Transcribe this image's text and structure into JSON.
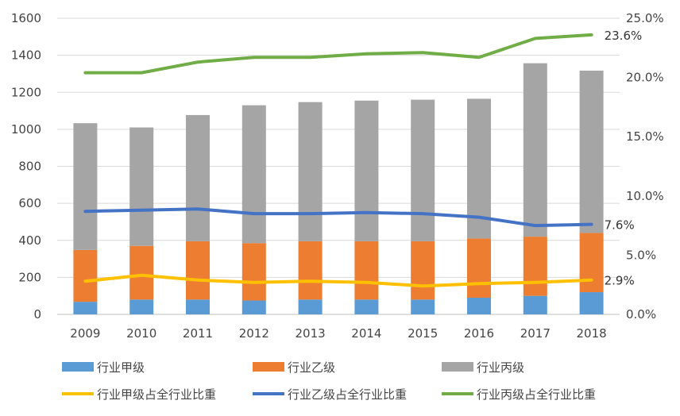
{
  "chart_data": {
    "type": "bar",
    "title": "",
    "categories": [
      "2009",
      "2010",
      "2011",
      "2012",
      "2013",
      "2014",
      "2015",
      "2016",
      "2017",
      "2018"
    ],
    "stacked": true,
    "series": [
      {
        "name": "行业甲级",
        "kind": "bar",
        "axis": "left",
        "color": "#5b9bd5",
        "values": [
          68,
          80,
          80,
          75,
          80,
          80,
          80,
          90,
          100,
          120
        ]
      },
      {
        "name": "行业乙级",
        "kind": "bar",
        "axis": "left",
        "color": "#ed7d31",
        "values": [
          280,
          290,
          315,
          310,
          315,
          315,
          315,
          320,
          320,
          320
        ]
      },
      {
        "name": "行业丙级",
        "kind": "bar",
        "axis": "left",
        "color": "#a5a5a5",
        "values": [
          685,
          640,
          682,
          745,
          752,
          760,
          765,
          755,
          937,
          877
        ]
      },
      {
        "name": "行业甲级占全行业比重",
        "kind": "line",
        "axis": "right",
        "color": "#ffc000",
        "values": [
          2.8,
          3.3,
          2.9,
          2.7,
          2.8,
          2.7,
          2.4,
          2.6,
          2.7,
          2.9
        ]
      },
      {
        "name": "行业乙级占全行业比重",
        "kind": "line",
        "axis": "right",
        "color": "#4472c4",
        "values": [
          8.7,
          8.8,
          8.9,
          8.5,
          8.5,
          8.6,
          8.5,
          8.2,
          7.5,
          7.6
        ]
      },
      {
        "name": "行业丙级占全行业比重",
        "kind": "line",
        "axis": "right",
        "color": "#70ad47",
        "values": [
          20.4,
          20.4,
          21.3,
          21.7,
          21.7,
          22.0,
          22.1,
          21.7,
          23.3,
          23.6
        ]
      }
    ],
    "ylim_left": [
      0,
      1600
    ],
    "yticks_left": [
      "0",
      "200",
      "400",
      "600",
      "800",
      "1000",
      "1200",
      "1400",
      "1600"
    ],
    "ylim_right": [
      0,
      25
    ],
    "yticks_right": [
      "0.0%",
      "5.0%",
      "10.0%",
      "15.0%",
      "20.0%",
      "25.0%"
    ],
    "end_labels": [
      {
        "series": "行业丙级占全行业比重",
        "text": "23.6%"
      },
      {
        "series": "行业乙级占全行业比重",
        "text": "7.6%"
      },
      {
        "series": "行业甲级占全行业比重",
        "text": "2.9%"
      }
    ],
    "legend_position": "bottom",
    "grid": true,
    "xlabel": "",
    "ylabel": ""
  }
}
